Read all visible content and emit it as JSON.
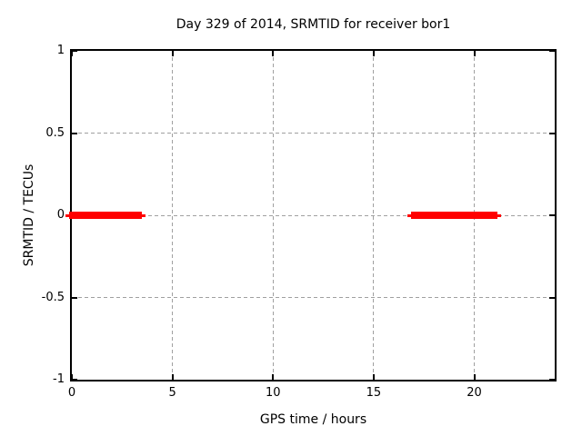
{
  "window": {
    "background": "#ffffff"
  },
  "chart_data": {
    "type": "line",
    "title": "Day 329 of 2014, SRMTID for receiver bor1",
    "xlabel": "GPS time / hours",
    "ylabel": "SRMTID / TECUs",
    "xlim": [
      0,
      24
    ],
    "ylim": [
      -1,
      1
    ],
    "xticks": [
      {
        "v": 0,
        "label": "0"
      },
      {
        "v": 5,
        "label": "5"
      },
      {
        "v": 10,
        "label": "10"
      },
      {
        "v": 15,
        "label": "15"
      },
      {
        "v": 20,
        "label": "20"
      }
    ],
    "yticks": [
      {
        "v": 1,
        "label": "1"
      },
      {
        "v": 0.5,
        "label": "0.5"
      },
      {
        "v": 0,
        "label": "0"
      },
      {
        "v": -0.5,
        "label": "-0.5"
      },
      {
        "v": -1,
        "label": "-1"
      }
    ],
    "grid": {
      "enabled": true,
      "style": "dashed",
      "color": "#a0a0a0"
    },
    "axis_color": "#000000",
    "text_color": "#000000",
    "legend": null,
    "series": [
      {
        "name": "SRMTID",
        "color": "#ff0000",
        "y": 0,
        "segments": [
          {
            "x_start": 0,
            "x_end": 3.35
          },
          {
            "x_start": 17,
            "x_end": 21
          }
        ]
      }
    ]
  }
}
